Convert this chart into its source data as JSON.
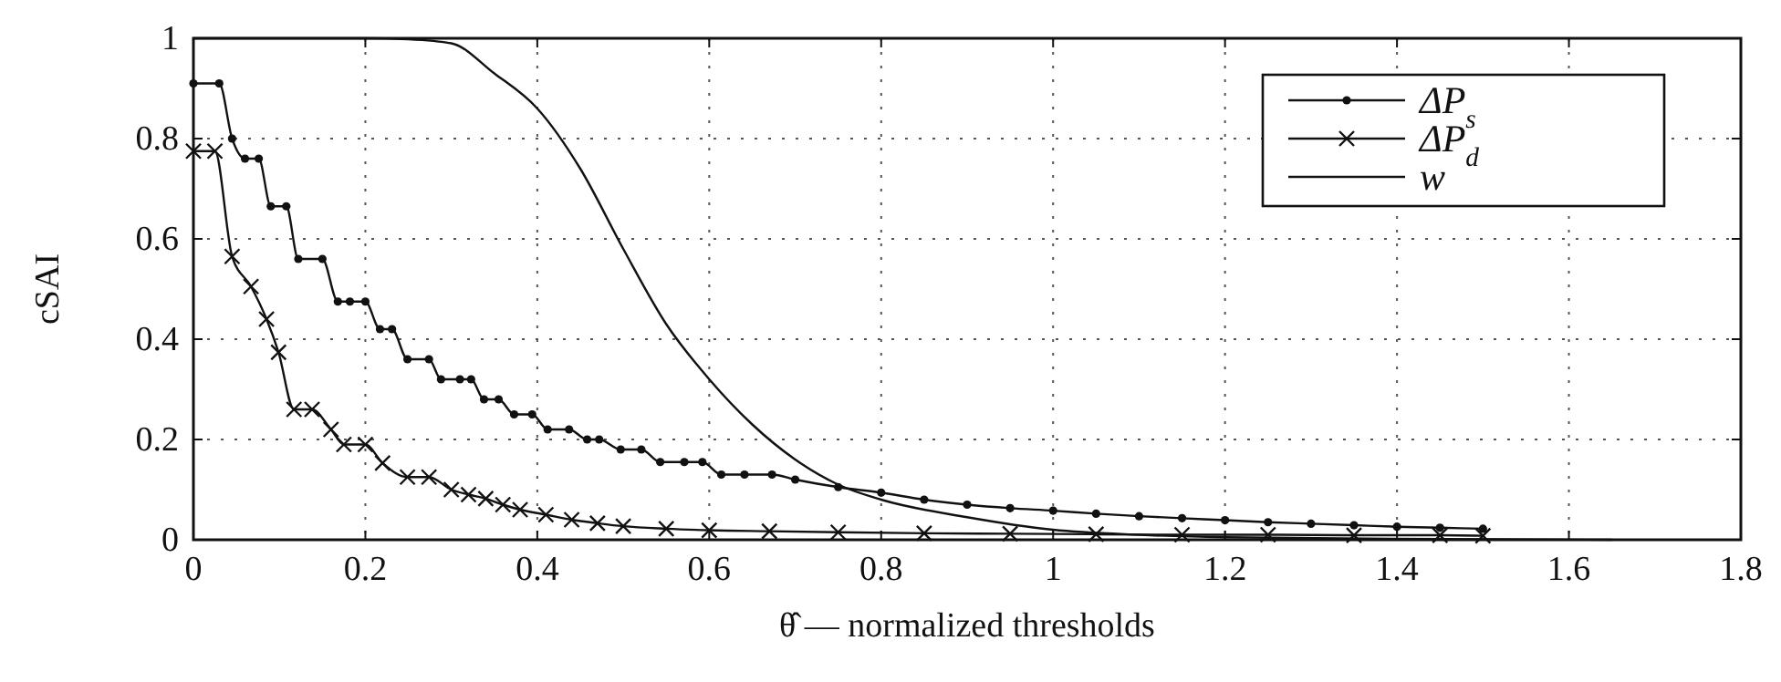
{
  "chart_data": {
    "type": "line",
    "xlabel": "θ̂ — normalized thresholds",
    "ylabel": "cSAI",
    "xlim": [
      0,
      1.8
    ],
    "xticks": [
      0,
      0.2,
      0.4,
      0.6,
      0.8,
      1,
      1.2,
      1.4,
      1.6,
      1.8
    ],
    "ylim": [
      0,
      1
    ],
    "yticks": [
      0,
      0.2,
      0.4,
      0.6,
      0.8,
      1
    ],
    "grid": true,
    "legend": "top right",
    "line_style": "solid",
    "series": [
      {
        "name": "ΔP$_{s}$",
        "color": "#111111",
        "marker": "circle",
        "x": [
          0,
          0.03,
          0.045,
          0.06,
          0.076,
          0.09,
          0.108,
          0.122,
          0.15,
          0.168,
          0.182,
          0.2,
          0.217,
          0.231,
          0.249,
          0.274,
          0.288,
          0.31,
          0.323,
          0.338,
          0.355,
          0.373,
          0.394,
          0.412,
          0.437,
          0.458,
          0.472,
          0.497,
          0.521,
          0.543,
          0.571,
          0.592,
          0.614,
          0.641,
          0.673,
          0.7,
          0.75,
          0.8,
          0.85,
          0.9,
          0.95,
          1.0,
          1.05,
          1.1,
          1.15,
          1.2,
          1.25,
          1.3,
          1.35,
          1.4,
          1.45,
          1.5
        ],
        "values": [
          0.91,
          0.91,
          0.8,
          0.76,
          0.76,
          0.665,
          0.665,
          0.56,
          0.56,
          0.475,
          0.475,
          0.475,
          0.42,
          0.42,
          0.36,
          0.36,
          0.32,
          0.32,
          0.32,
          0.28,
          0.28,
          0.25,
          0.25,
          0.22,
          0.22,
          0.2,
          0.2,
          0.18,
          0.18,
          0.155,
          0.155,
          0.155,
          0.13,
          0.13,
          0.13,
          0.12,
          0.105,
          0.094,
          0.08,
          0.07,
          0.063,
          0.058,
          0.052,
          0.047,
          0.043,
          0.039,
          0.035,
          0.032,
          0.029,
          0.026,
          0.024,
          0.022
        ]
      },
      {
        "name": "ΔP$_{d}$",
        "color": "#111111",
        "marker": "cross",
        "x": [
          0,
          0.025,
          0.045,
          0.067,
          0.085,
          0.099,
          0.117,
          0.138,
          0.16,
          0.175,
          0.2,
          0.22,
          0.249,
          0.274,
          0.3,
          0.32,
          0.34,
          0.36,
          0.38,
          0.41,
          0.44,
          0.47,
          0.5,
          0.55,
          0.6,
          0.67,
          0.75,
          0.85,
          0.95,
          1.05,
          1.15,
          1.25,
          1.35,
          1.45,
          1.5
        ],
        "values": [
          0.775,
          0.775,
          0.565,
          0.505,
          0.44,
          0.374,
          0.26,
          0.26,
          0.22,
          0.19,
          0.19,
          0.153,
          0.125,
          0.125,
          0.1,
          0.09,
          0.082,
          0.07,
          0.06,
          0.05,
          0.04,
          0.033,
          0.027,
          0.022,
          0.019,
          0.017,
          0.015,
          0.013,
          0.012,
          0.011,
          0.01,
          0.01,
          0.009,
          0.009,
          0.008
        ]
      },
      {
        "name": "w",
        "color": "#111111",
        "marker": "none",
        "x": [
          0,
          0.1,
          0.2,
          0.25,
          0.3,
          0.35,
          0.4,
          0.45,
          0.5,
          0.55,
          0.6,
          0.65,
          0.7,
          0.75,
          0.8,
          0.9,
          1.0,
          1.1,
          1.2,
          1.4,
          1.65
        ],
        "values": [
          1,
          1,
          1,
          0.998,
          0.99,
          0.93,
          0.86,
          0.74,
          0.58,
          0.43,
          0.32,
          0.23,
          0.16,
          0.11,
          0.08,
          0.045,
          0.02,
          0.01,
          0.005,
          0.002,
          0
        ]
      }
    ]
  }
}
